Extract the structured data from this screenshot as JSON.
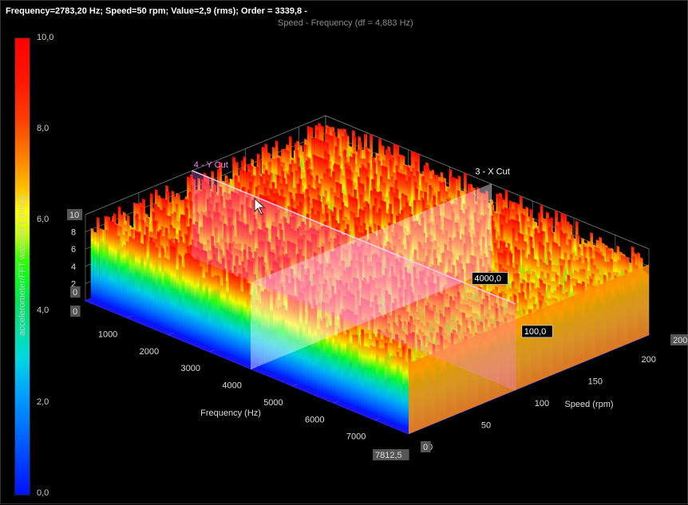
{
  "status_line": "Frequency=2783,20 Hz; Speed=50 rpm; Value=2,9  (rms); Order = 3339,8 -",
  "subtitle": "Speed - Frequency (df = 4,883 Hz)",
  "colorbar": {
    "label": "accelerometer/FFT waterfall ( (rms))",
    "ticks": [
      "10,0",
      "8,0",
      "6,0",
      "4,0",
      "2,0",
      "0,0"
    ]
  },
  "cuts": {
    "x_cut_label": "3 - X Cut",
    "y_cut_label": "4 - Y Cut",
    "x_cut_value": "4000,0",
    "y_cut_value": "100,0"
  },
  "chart_data": {
    "type": "waterfall-3d",
    "xlabel": "Frequency (Hz)",
    "ylabel": "Speed (rpm)",
    "zlabel": "",
    "x_ticks": [
      "1000",
      "2000",
      "3000",
      "4000",
      "5000",
      "6000",
      "7000"
    ],
    "y_ticks": [
      "0",
      "50",
      "100",
      "150",
      "200"
    ],
    "z_ticks": [
      "2",
      "4",
      "6",
      "8",
      "10"
    ],
    "axis_end_labels": {
      "x_max": "7812,5",
      "x_min": "0",
      "y_max": "200",
      "y_min": "0",
      "z_min": "0",
      "z_top": "10"
    },
    "xlim": [
      0,
      7812.5
    ],
    "ylim": [
      0,
      225
    ],
    "zlim": [
      0,
      10
    ],
    "colorscale": {
      "min": 0,
      "max": 10
    },
    "x_cut_at": 4000,
    "y_cut_at": 100,
    "spectra_speeds_rpm": [
      225,
      215,
      205,
      195,
      185,
      175,
      165,
      155,
      145,
      135,
      125,
      115,
      105,
      95,
      85,
      75,
      65,
      55,
      45,
      35,
      25,
      15,
      5
    ],
    "overall_level_band": [
      7,
      10
    ]
  }
}
